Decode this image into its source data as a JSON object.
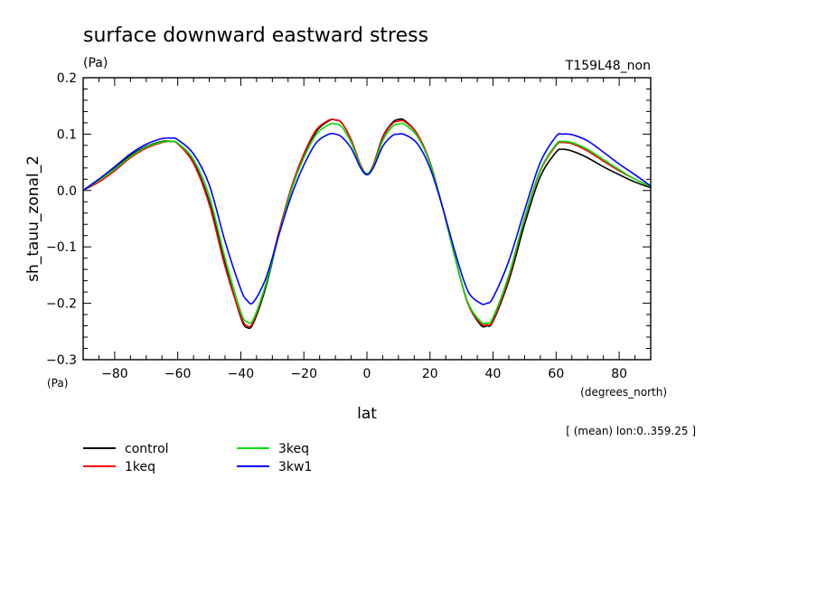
{
  "chart_data": {
    "type": "line",
    "title": "surface downward eastward stress",
    "units_top": "(Pa)",
    "units_bottom": "(Pa)",
    "experiment": "T159L48_non",
    "ylabel": "sh_tauu_zonal_2",
    "xlabel": "lat",
    "xunits": "(degrees_north)",
    "note": "[ (mean) lon:0..359.25 ]",
    "xlim": [
      -90,
      90
    ],
    "ylim": [
      -0.3,
      0.2
    ],
    "x_ticks": [
      -80,
      -60,
      -40,
      -20,
      0,
      20,
      40,
      60,
      80
    ],
    "x_tick_labels": [
      "−80",
      "−60",
      "−40",
      "−20",
      "0",
      "20",
      "40",
      "60",
      "80"
    ],
    "y_ticks": [
      -0.3,
      -0.2,
      -0.1,
      0.0,
      0.1,
      0.2
    ],
    "y_tick_labels": [
      "−0.3",
      "−0.2",
      "−0.1",
      "0.0",
      "0.1",
      "0.2"
    ],
    "legend_placement": "bottom-left",
    "x": [
      -90,
      -85,
      -80,
      -75,
      -70,
      -65,
      -62,
      -60,
      -55,
      -50,
      -45,
      -40,
      -38,
      -36,
      -32,
      -28,
      -24,
      -20,
      -16,
      -12,
      -10,
      -8,
      -5,
      -2,
      0,
      2,
      5,
      8,
      10,
      12,
      16,
      20,
      24,
      28,
      32,
      36,
      38,
      40,
      45,
      50,
      55,
      60,
      62,
      65,
      70,
      75,
      80,
      85,
      90
    ],
    "series": [
      {
        "name": "control",
        "color": "#000000",
        "values": [
          0.0,
          0.02,
          0.04,
          0.062,
          0.078,
          0.087,
          0.087,
          0.083,
          0.05,
          -0.02,
          -0.13,
          -0.225,
          -0.243,
          -0.235,
          -0.17,
          -0.08,
          0.0,
          0.06,
          0.105,
          0.124,
          0.125,
          0.12,
          0.09,
          0.045,
          0.03,
          0.045,
          0.095,
          0.12,
          0.126,
          0.124,
          0.1,
          0.05,
          -0.03,
          -0.12,
          -0.2,
          -0.238,
          -0.24,
          -0.232,
          -0.16,
          -0.06,
          0.025,
          0.068,
          0.073,
          0.07,
          0.058,
          0.042,
          0.028,
          0.015,
          0.005
        ]
      },
      {
        "name": "1keq",
        "color": "#ff0000",
        "values": [
          0.0,
          0.015,
          0.035,
          0.058,
          0.075,
          0.085,
          0.087,
          0.083,
          0.048,
          -0.025,
          -0.135,
          -0.222,
          -0.24,
          -0.232,
          -0.165,
          -0.075,
          0.005,
          0.065,
          0.108,
          0.125,
          0.125,
          0.12,
          0.09,
          0.045,
          0.03,
          0.045,
          0.093,
          0.118,
          0.123,
          0.122,
          0.1,
          0.05,
          -0.03,
          -0.12,
          -0.2,
          -0.235,
          -0.238,
          -0.23,
          -0.155,
          -0.05,
          0.035,
          0.08,
          0.085,
          0.083,
          0.07,
          0.052,
          0.035,
          0.02,
          0.007
        ]
      },
      {
        "name": "3keq",
        "color": "#00e000",
        "values": [
          0.0,
          0.018,
          0.038,
          0.06,
          0.077,
          0.086,
          0.087,
          0.084,
          0.055,
          -0.01,
          -0.12,
          -0.215,
          -0.233,
          -0.228,
          -0.165,
          -0.08,
          0.0,
          0.058,
          0.1,
          0.117,
          0.118,
          0.113,
          0.085,
          0.043,
          0.03,
          0.043,
          0.088,
          0.113,
          0.118,
          0.117,
          0.096,
          0.048,
          -0.03,
          -0.12,
          -0.198,
          -0.232,
          -0.235,
          -0.225,
          -0.15,
          -0.048,
          0.037,
          0.082,
          0.087,
          0.085,
          0.073,
          0.055,
          0.037,
          0.02,
          0.007
        ]
      },
      {
        "name": "3kw1",
        "color": "#0000ff",
        "values": [
          0.0,
          0.02,
          0.042,
          0.065,
          0.082,
          0.092,
          0.093,
          0.09,
          0.065,
          0.01,
          -0.09,
          -0.175,
          -0.195,
          -0.198,
          -0.155,
          -0.08,
          -0.01,
          0.045,
          0.085,
          0.1,
          0.1,
          0.095,
          0.075,
          0.04,
          0.028,
          0.04,
          0.078,
          0.097,
          0.1,
          0.099,
          0.083,
          0.04,
          -0.03,
          -0.11,
          -0.178,
          -0.2,
          -0.2,
          -0.19,
          -0.125,
          -0.035,
          0.05,
          0.096,
          0.1,
          0.099,
          0.088,
          0.068,
          0.047,
          0.028,
          0.008
        ]
      }
    ]
  }
}
